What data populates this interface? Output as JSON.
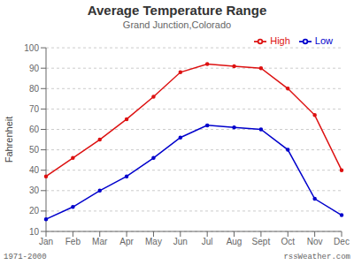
{
  "chart_data": {
    "type": "line",
    "title": "Average Temperature Range",
    "subtitle": "Grand Junction,Colorado",
    "y_label": "Fahrenheit",
    "annotations": [
      "1971-2000",
      "rssWeather.com"
    ],
    "categories": [
      "Jan",
      "Feb",
      "Mar",
      "Apr",
      "May",
      "Jun",
      "Jul",
      "Aug",
      "Sept",
      "Oct",
      "Nov",
      "Dec"
    ],
    "series": [
      {
        "name": "High",
        "color": "#dd1111",
        "values": [
          37,
          46,
          55,
          65,
          76,
          88,
          92,
          91,
          90,
          80,
          67,
          40
        ]
      },
      {
        "name": "Low",
        "color": "#0000cc",
        "values": [
          16,
          22,
          30,
          37,
          46,
          56,
          62,
          61,
          60,
          50,
          26,
          18
        ]
      }
    ],
    "ylim": [
      10,
      100
    ],
    "yticks": [
      10,
      20,
      30,
      40,
      50,
      60,
      70,
      80,
      90,
      100
    ],
    "grid": true,
    "legend": "upper right",
    "marker": "dot"
  }
}
